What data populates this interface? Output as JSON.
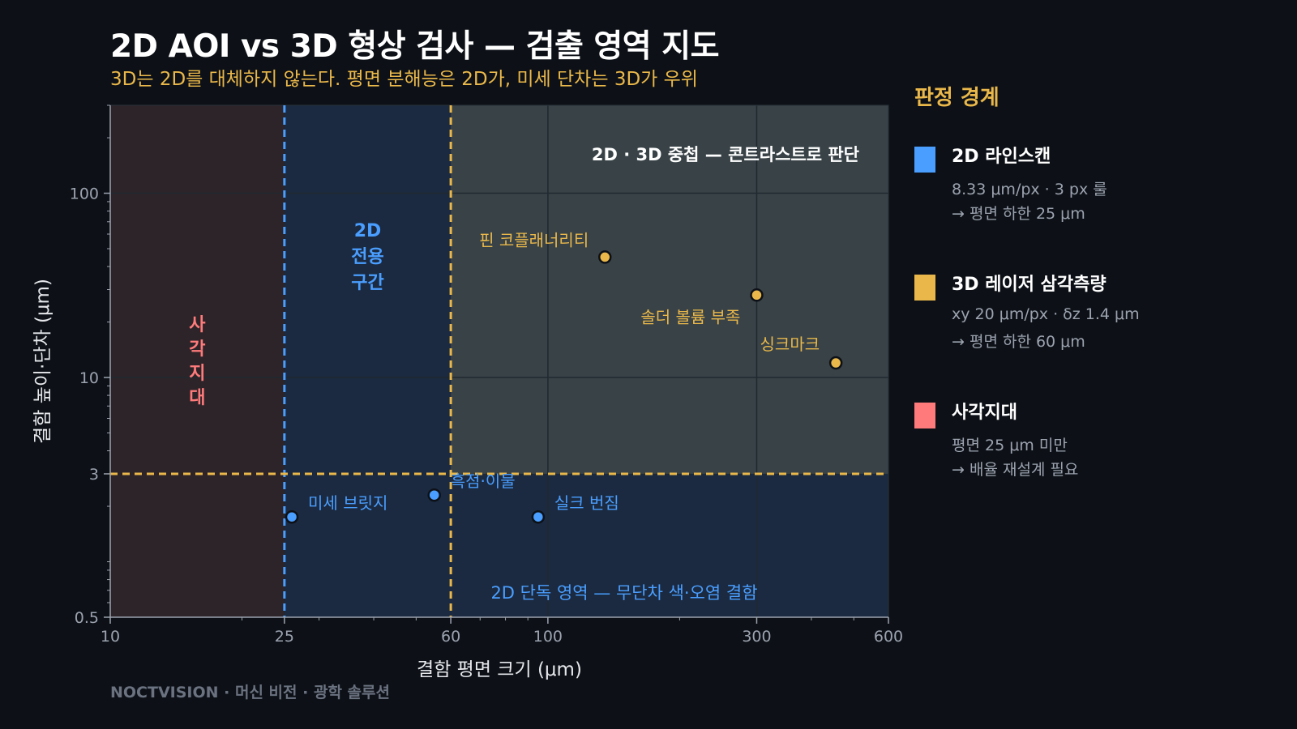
{
  "colors": {
    "background": "#0d1117",
    "blind_zone": "#2d2429",
    "two_d_zone": "#1b2a40",
    "overlap_zone": "#384247",
    "blue": "#4a9eff",
    "yellow": "#eab84a",
    "red": "#ff7b7b",
    "grid": "#202830",
    "axis": "#9ca3af"
  },
  "chart_data": {
    "type": "scatter",
    "title": "2D AOI vs 3D 형상 검사 — 검출 영역 지도",
    "subtitle": "3D는 2D를 대체하지 않는다. 평면 분해능은 2D가, 미세 단차는 3D가 우위",
    "xlabel": "결함 평면 크기 (μm)",
    "ylabel": "결함 높이·단차 (μm)",
    "x_scale": "log",
    "y_scale": "log",
    "xlim": [
      10,
      600
    ],
    "ylim": [
      0.5,
      300
    ],
    "x_ticks": [
      10,
      25,
      60,
      100,
      300,
      600
    ],
    "y_ticks": [
      0.5,
      3,
      10,
      100
    ],
    "boundaries": [
      {
        "axis": "x",
        "value": 25,
        "color": "#4a9eff"
      },
      {
        "axis": "x",
        "value": 60,
        "color": "#eab84a"
      },
      {
        "axis": "y",
        "value": 3,
        "color": "#eab84a"
      }
    ],
    "zone_labels": {
      "blind": "사\n각\n지\n대",
      "two_d_only": "2D\n전용\n구간",
      "overlap": "2D · 3D 중첩 — 콘트라스트로 판단",
      "two_d_alone": "2D 단독 영역 — 무단차 색·오염 결함"
    },
    "series": [
      {
        "color": "#4a9eff",
        "points": [
          {
            "x": 26,
            "y": 1.75,
            "label": "미세 브릿지"
          },
          {
            "x": 55,
            "y": 2.3,
            "label": "흑점·이물"
          },
          {
            "x": 95,
            "y": 1.75,
            "label": "실크 번짐"
          }
        ]
      },
      {
        "color": "#eab84a",
        "points": [
          {
            "x": 135,
            "y": 45,
            "label": "핀 코플래너리티"
          },
          {
            "x": 300,
            "y": 28,
            "label": "솔더 볼륨 부족"
          },
          {
            "x": 455,
            "y": 12,
            "label": "싱크마크"
          }
        ]
      }
    ]
  },
  "legend": {
    "title": "판정 경계",
    "items": [
      {
        "name": "2D 라인스캔",
        "line1": "8.33 μm/px · 3 px 룰",
        "line2": "→ 평면 하한 25 μm",
        "color": "#4a9eff"
      },
      {
        "name": "3D 레이저 삼각측량",
        "line1": "xy 20 μm/px · δz 1.4 μm",
        "line2": "→ 평면 하한 60 μm",
        "color": "#eab84a"
      },
      {
        "name": "사각지대",
        "line1": "평면 25 μm 미만",
        "line2": "→ 배율 재설계 필요",
        "color": "#ff7b7b"
      }
    ]
  },
  "footer": "NOCTVISION · 머신 비전 · 광학 솔루션"
}
